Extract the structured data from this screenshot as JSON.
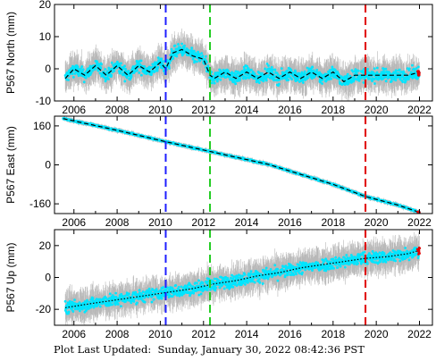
{
  "footer": {
    "label": "Plot Last Updated:",
    "timestamp": "Sunday, January 30, 2022 08:42:36 PST"
  },
  "colors": {
    "scatter_cyan": "#00e5ff",
    "error_bar_gray": "#b8b8b8",
    "model_line": "#000000",
    "event_blue": "#1f1fff",
    "event_green": "#22cc22",
    "event_red": "#e00000"
  },
  "chart_data": [
    {
      "type": "scatter",
      "ylabel": "P567 North (mm)",
      "xlim": [
        2005.1,
        2022.6
      ],
      "ylim": [
        -10,
        20
      ],
      "yticks": [
        -10,
        0,
        10,
        20
      ],
      "xticks": [
        2006,
        2008,
        2010,
        2012,
        2014,
        2016,
        2018,
        2020,
        2022
      ],
      "grid": false,
      "event_lines": [
        {
          "x": 2010.25,
          "color": "blue"
        },
        {
          "x": 2012.3,
          "color": "green"
        },
        {
          "x": 2019.5,
          "color": "red"
        }
      ],
      "series": [
        {
          "kind": "daily positions (cyan) with error bars (gray)",
          "x": [
            2005.6,
            2006.0,
            2006.5,
            2007.0,
            2007.5,
            2008.0,
            2008.5,
            2009.0,
            2009.5,
            2010.0,
            2010.25,
            2010.6,
            2011.0,
            2011.5,
            2012.0,
            2012.3,
            2012.5,
            2013.0,
            2013.5,
            2014.0,
            2014.5,
            2015.0,
            2015.5,
            2016.0,
            2016.5,
            2017.0,
            2017.5,
            2018.0,
            2018.5,
            2019.0,
            2019.5,
            2020.0,
            2020.5,
            2021.0,
            2021.5,
            2022.0
          ],
          "y": [
            -3,
            0,
            -2,
            1,
            -2,
            1,
            -2,
            1,
            -1,
            2,
            0,
            5,
            6,
            4,
            3,
            -2,
            -3,
            -1,
            -3,
            -1,
            -3,
            -1,
            -3,
            -1,
            -3,
            -1,
            -3,
            -1,
            -4,
            -2,
            -2,
            -2,
            -2,
            -2,
            -2,
            -1
          ]
        }
      ],
      "model": "black dashed seasonal model through the positions"
    },
    {
      "type": "scatter",
      "ylabel": "P567 East (mm)",
      "xlim": [
        2005.1,
        2022.6
      ],
      "ylim": [
        -200,
        200
      ],
      "yticks": [
        -160,
        0,
        160
      ],
      "xticks": [
        2006,
        2008,
        2010,
        2012,
        2014,
        2016,
        2018,
        2020,
        2022
      ],
      "grid": false,
      "event_lines": [
        {
          "x": 2010.25,
          "color": "blue"
        },
        {
          "x": 2012.3,
          "color": "green"
        },
        {
          "x": 2019.5,
          "color": "red"
        }
      ],
      "series": [
        {
          "kind": "daily positions (cyan) with error bars (gray)",
          "x": [
            2005.5,
            2008.0,
            2010.25,
            2012.3,
            2015.0,
            2018.0,
            2019.5,
            2021.0,
            2022.0
          ],
          "y": [
            190,
            142,
            95,
            55,
            2,
            -80,
            -130,
            -165,
            -195
          ]
        }
      ],
      "model": "black dashed linear trend"
    },
    {
      "type": "scatter",
      "ylabel": "P567 Up (mm)",
      "xlim": [
        2005.1,
        2022.6
      ],
      "ylim": [
        -30,
        30
      ],
      "yticks": [
        -20,
        0,
        20
      ],
      "xticks": [
        2006,
        2008,
        2010,
        2012,
        2014,
        2016,
        2018,
        2020,
        2022
      ],
      "grid": false,
      "event_lines": [
        {
          "x": 2010.25,
          "color": "blue"
        },
        {
          "x": 2012.3,
          "color": "green"
        },
        {
          "x": 2019.5,
          "color": "red"
        }
      ],
      "series": [
        {
          "kind": "daily positions (cyan) with error bars (gray)",
          "x": [
            2005.6,
            2006.5,
            2007.5,
            2008.5,
            2009.5,
            2010.5,
            2011.5,
            2012.5,
            2013.5,
            2014.5,
            2015.5,
            2016.5,
            2017.5,
            2018.5,
            2019.5,
            2020.5,
            2021.5,
            2022.0
          ],
          "y": [
            -19,
            -17,
            -15,
            -13,
            -11,
            -9,
            -7,
            -4,
            -2,
            1,
            3,
            6,
            8,
            10,
            12,
            13,
            15,
            17
          ]
        }
      ],
      "model": "black dotted trend with seasonal wiggle"
    }
  ]
}
